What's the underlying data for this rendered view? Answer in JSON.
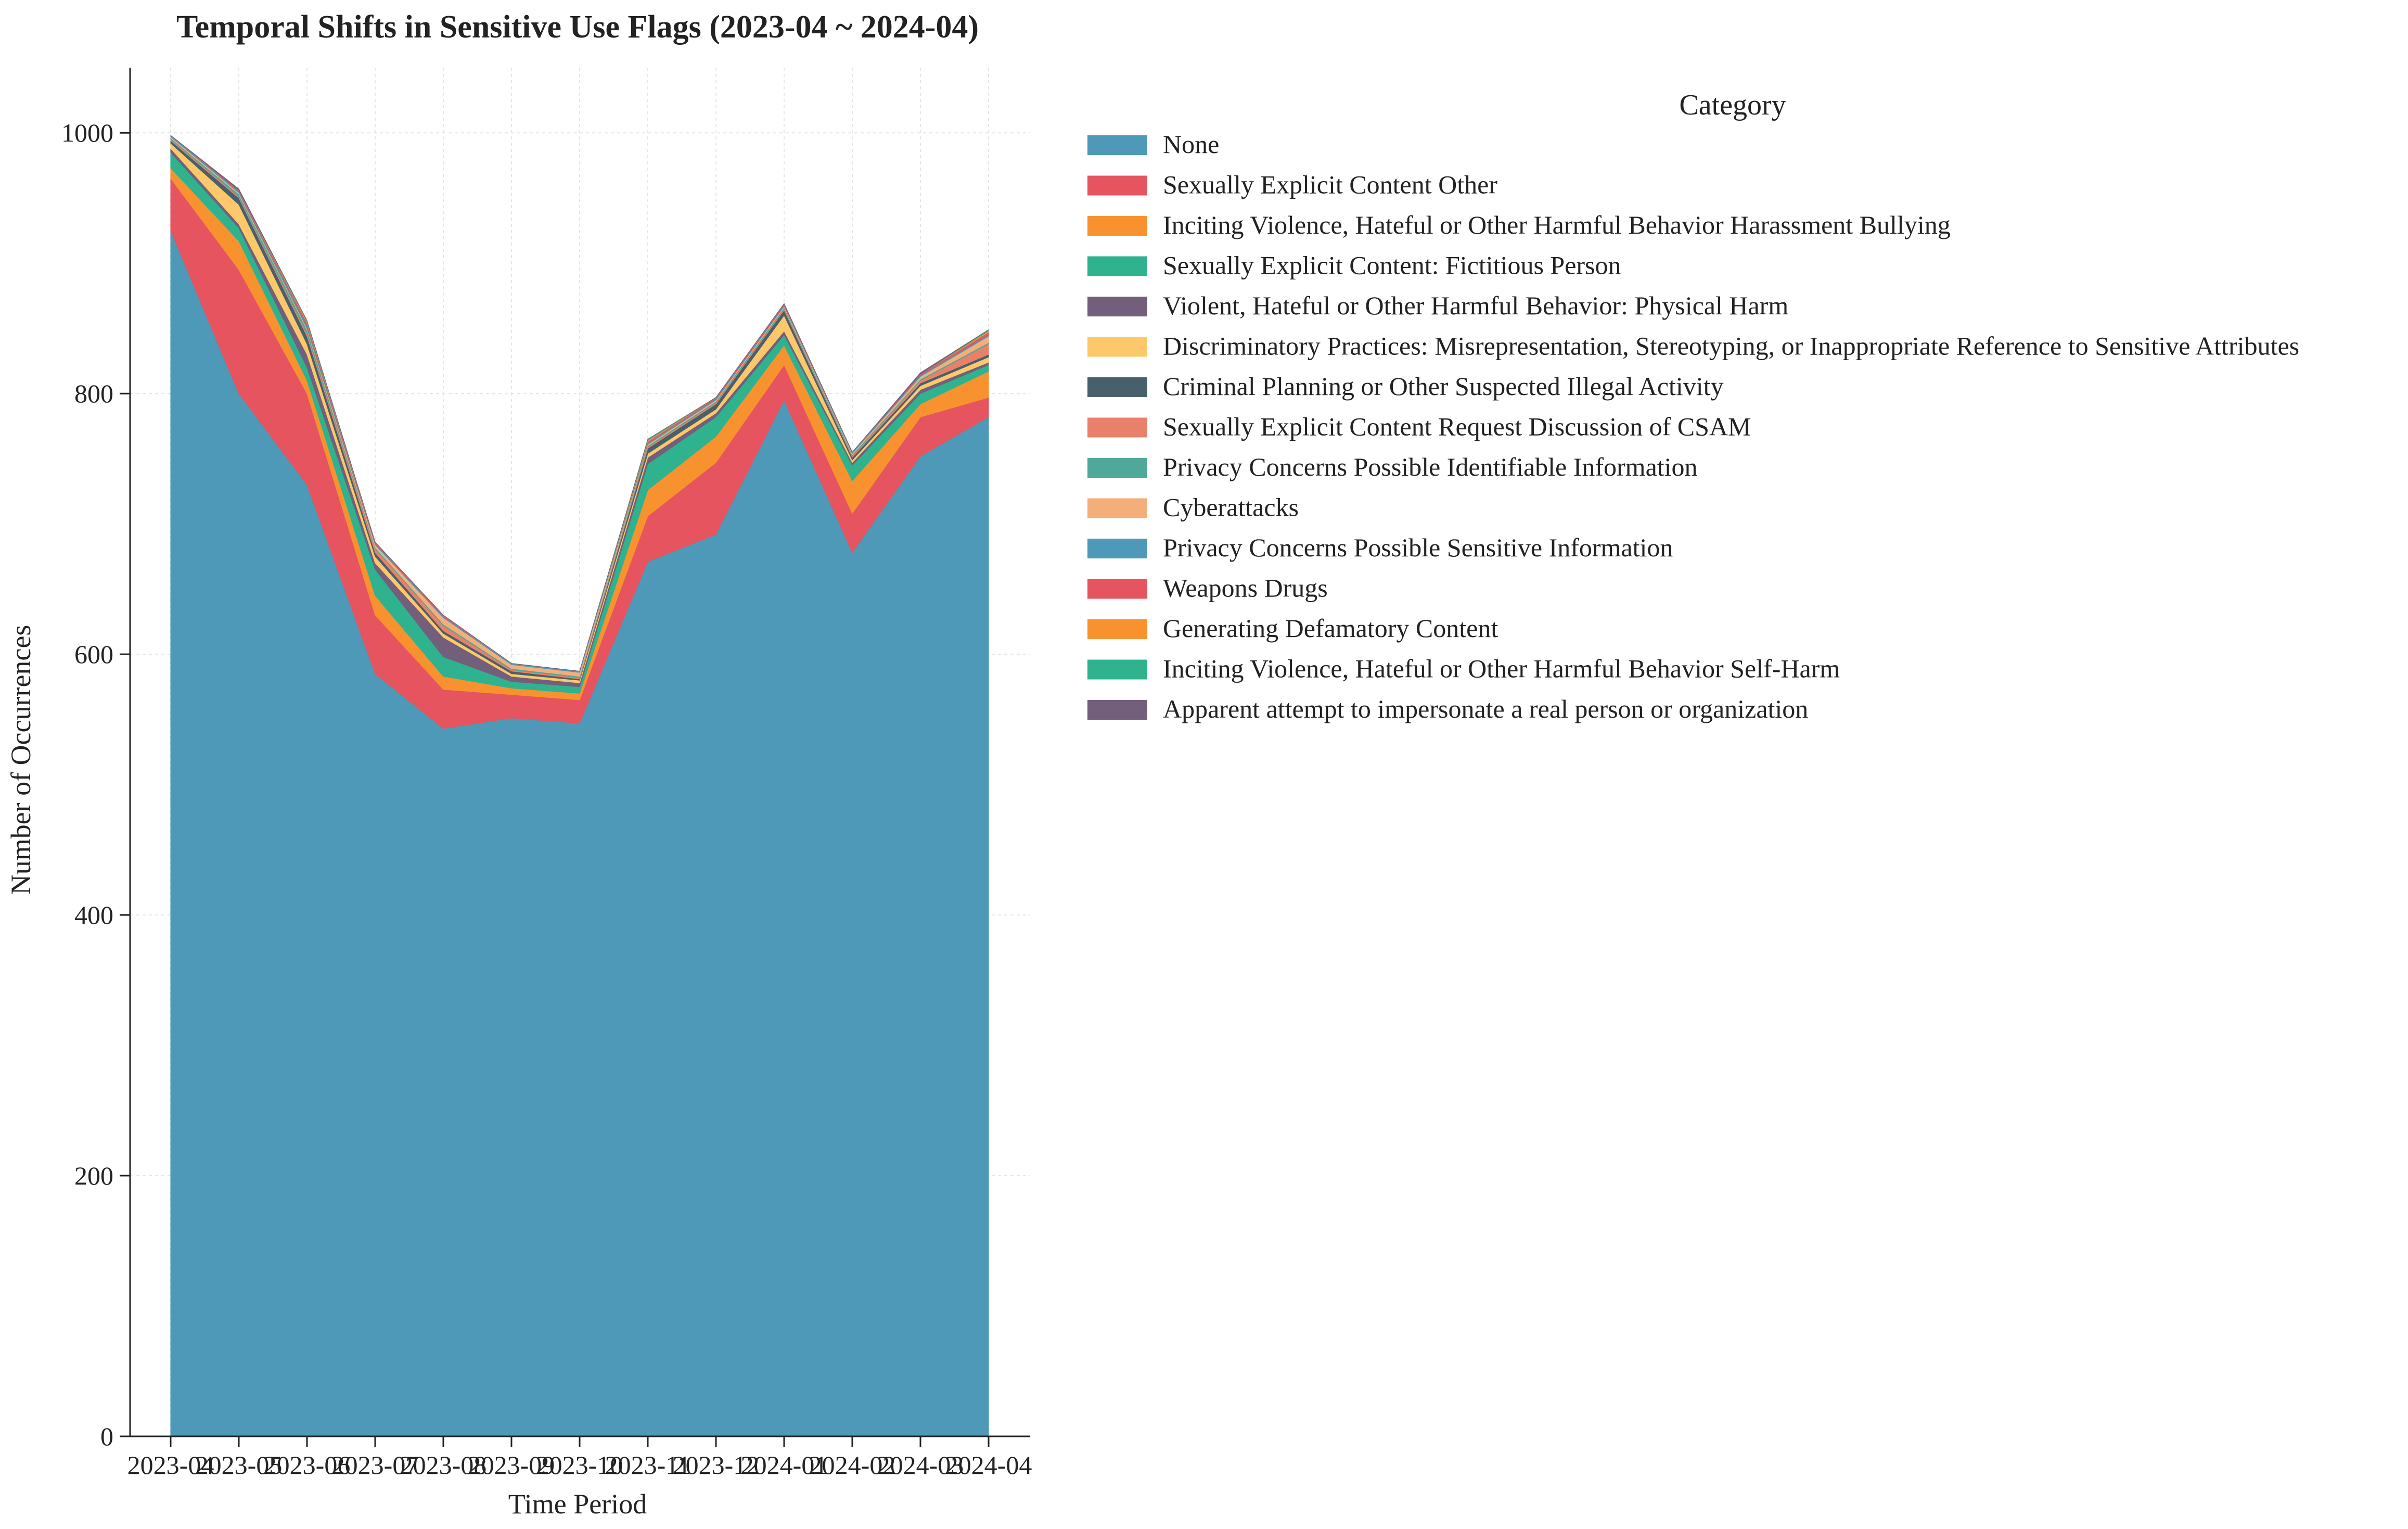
{
  "chart_data": {
    "type": "area",
    "stacked": true,
    "title": "Temporal Shifts in Sensitive Use Flags (2023-04 ~ 2024-04)",
    "xlabel": "Time Period",
    "ylabel": "Number of Occurrences",
    "ylim": [
      0,
      1050
    ],
    "yticks": [
      0,
      200,
      400,
      600,
      800,
      1000
    ],
    "grid": true,
    "legend": {
      "title": "Category",
      "placement": "outside-right"
    },
    "x": [
      "2023-04",
      "2023-05",
      "2023-06",
      "2023-07",
      "2023-08",
      "2023-09",
      "2023-10",
      "2023-11",
      "2023-12",
      "2024-01",
      "2024-02",
      "2024-03",
      "2024-04"
    ],
    "series": [
      {
        "name": "None",
        "color": "#4e98b8",
        "values": [
          925,
          800,
          730,
          585,
          543,
          551,
          547,
          671,
          692,
          795,
          678,
          752,
          782
        ]
      },
      {
        "name": "Sexually Explicit Content Other",
        "color": "#e5545f",
        "values": [
          40,
          95,
          70,
          45,
          30,
          18,
          18,
          35,
          55,
          27,
          30,
          30,
          15
        ]
      },
      {
        "name": "Inciting Violence, Hateful or Other Harmful Behavior Harassment Bullying",
        "color": "#f8922f",
        "values": [
          8,
          22,
          10,
          15,
          10,
          5,
          5,
          20,
          20,
          15,
          25,
          10,
          20
        ]
      },
      {
        "name": "Sexually Explicit Content: Fictitious Person",
        "color": "#2fb28e",
        "values": [
          12,
          10,
          10,
          20,
          15,
          5,
          5,
          20,
          15,
          8,
          12,
          8,
          5
        ]
      },
      {
        "name": "Violent, Hateful or Other Harmful Behavior: Physical Harm",
        "color": "#735f7b",
        "values": [
          3,
          3,
          10,
          5,
          15,
          4,
          3,
          5,
          3,
          3,
          2,
          3,
          2
        ]
      },
      {
        "name": "Discriminatory Practices: Misrepresentation, Stereotyping, or Inappropriate Reference to Sensitive Attributes",
        "color": "#fcc86a",
        "values": [
          4,
          15,
          8,
          5,
          3,
          2,
          2,
          3,
          3,
          12,
          2,
          3,
          4
        ]
      },
      {
        "name": "Criminal Planning or Other Suspected Illegal Activity",
        "color": "#485f6c",
        "values": [
          2,
          5,
          6,
          3,
          2,
          2,
          1,
          4,
          4,
          4,
          2,
          2,
          2
        ]
      },
      {
        "name": "Sexually Explicit Content Request Discussion of CSAM",
        "color": "#e8806a",
        "values": [
          1,
          1,
          2,
          3,
          4,
          1,
          1,
          1,
          1,
          1,
          1,
          2,
          8
        ]
      },
      {
        "name": "Privacy Concerns Possible Identifiable Information",
        "color": "#4fa89a",
        "values": [
          1,
          2,
          3,
          1,
          1,
          1,
          1,
          1,
          1,
          1,
          1,
          1,
          1
        ]
      },
      {
        "name": "Cyberattacks",
        "color": "#f4ae79",
        "values": [
          1,
          1,
          1,
          2,
          5,
          3,
          3,
          1,
          1,
          1,
          1,
          2,
          5
        ]
      },
      {
        "name": "Privacy Concerns Possible Sensitive Information",
        "color": "#4e98b8",
        "values": [
          1,
          1,
          2,
          1,
          1,
          1,
          1,
          1,
          1,
          1,
          1,
          1,
          1
        ]
      },
      {
        "name": "Weapons Drugs",
        "color": "#e5545f",
        "values": [
          0,
          1,
          2,
          1,
          1,
          0,
          0,
          1,
          1,
          1,
          0,
          1,
          2
        ]
      },
      {
        "name": "Generating Defamatory Content",
        "color": "#f8922f",
        "values": [
          0,
          0,
          1,
          0,
          0,
          0,
          0,
          1,
          0,
          0,
          0,
          0,
          1
        ]
      },
      {
        "name": "Inciting Violence, Hateful or Other Harmful Behavior Self-Harm",
        "color": "#2fb28e",
        "values": [
          0,
          0,
          1,
          0,
          0,
          0,
          0,
          1,
          0,
          0,
          0,
          0,
          1
        ]
      },
      {
        "name": "Apparent attempt to impersonate a real person or organization",
        "color": "#735f7b",
        "values": [
          0,
          1,
          0,
          0,
          0,
          0,
          0,
          0,
          0,
          0,
          0,
          1,
          0
        ]
      }
    ]
  }
}
